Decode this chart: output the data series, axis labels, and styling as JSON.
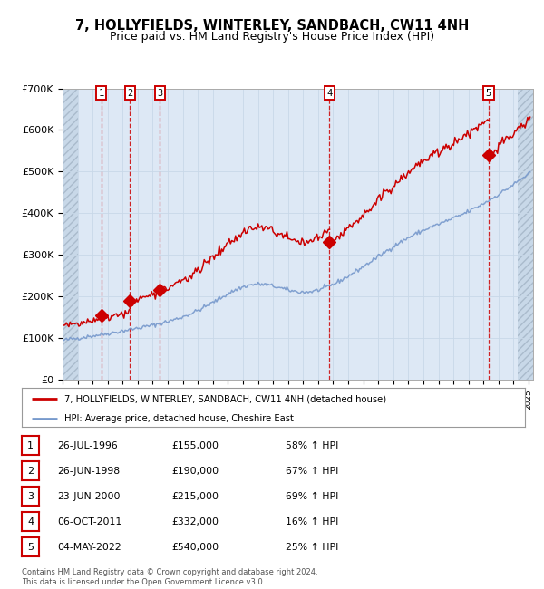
{
  "title": "7, HOLLYFIELDS, WINTERLEY, SANDBACH, CW11 4NH",
  "subtitle": "Price paid vs. HM Land Registry's House Price Index (HPI)",
  "ylim": [
    0,
    700000
  ],
  "yticks": [
    0,
    100000,
    200000,
    300000,
    400000,
    500000,
    600000,
    700000
  ],
  "ytick_labels": [
    "£0",
    "£100K",
    "£200K",
    "£300K",
    "£400K",
    "£500K",
    "£600K",
    "£700K"
  ],
  "x_start_year": 1994,
  "x_end_year": 2025,
  "sale_dates_decimal": [
    1996.57,
    1998.49,
    2000.48,
    2011.76,
    2022.34
  ],
  "sale_prices": [
    155000,
    190000,
    215000,
    332000,
    540000
  ],
  "sale_labels": [
    "1",
    "2",
    "3",
    "4",
    "5"
  ],
  "sale_info": [
    [
      "1",
      "26-JUL-1996",
      "£155,000",
      "58% ↑ HPI"
    ],
    [
      "2",
      "26-JUN-1998",
      "£190,000",
      "67% ↑ HPI"
    ],
    [
      "3",
      "23-JUN-2000",
      "£215,000",
      "69% ↑ HPI"
    ],
    [
      "4",
      "06-OCT-2011",
      "£332,000",
      "16% ↑ HPI"
    ],
    [
      "5",
      "04-MAY-2022",
      "£540,000",
      "25% ↑ HPI"
    ]
  ],
  "hpi_line_color": "#7799cc",
  "price_line_color": "#cc0000",
  "sale_marker_color": "#cc0000",
  "vline_color": "#cc0000",
  "grid_color": "#c8d8e8",
  "bg_color": "#dde8f5",
  "legend_line1": "7, HOLLYFIELDS, WINTERLEY, SANDBACH, CW11 4NH (detached house)",
  "legend_line2": "HPI: Average price, detached house, Cheshire East",
  "footer": "Contains HM Land Registry data © Crown copyright and database right 2024.\nThis data is licensed under the Open Government Licence v3.0.",
  "title_fontsize": 10.5,
  "subtitle_fontsize": 9
}
